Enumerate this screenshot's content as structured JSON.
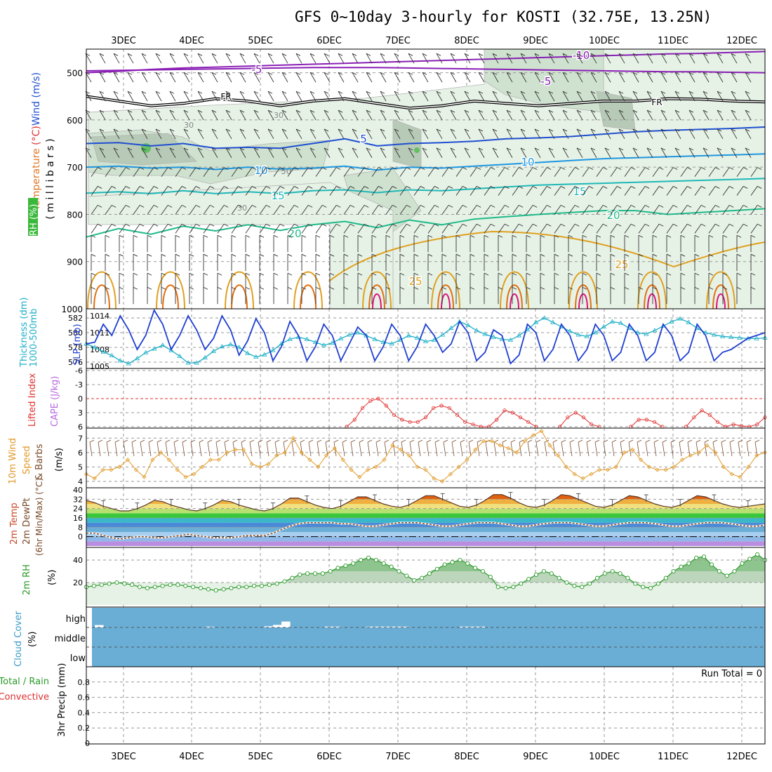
{
  "title": "GFS 0~10day 3-hourly for KOSTI (32.75E, 13.25N)",
  "x_axis": {
    "ticks": [
      "3DEC",
      "4DEC",
      "5DEC",
      "6DEC",
      "7DEC",
      "8DEC",
      "9DEC",
      "10DEC",
      "11DEC",
      "12DEC"
    ]
  },
  "colors": {
    "rh_light": "#e6f2e6",
    "rh_mid": "#cfe2cf",
    "rh_dark": "#b7c9b7",
    "temp_neg10": "#8a1fb5",
    "temp_neg5": "#8a1fb5",
    "freezing": "#000000",
    "temp_5": "#1f4fd1",
    "temp_10": "#1e96e0",
    "temp_15": "#1fb8b8",
    "temp_20": "#1fba8a",
    "temp_25": "#e0a020",
    "temp_30": "#e07010",
    "temp_35": "#e0107a",
    "slp": "#1f3fd1",
    "thickness": "#1fb0c8",
    "lifted_index": "#e03030",
    "wind": "#e09a2a",
    "cloud": "#6aaed6",
    "rh2m": "#2a9a2a"
  },
  "chart_data": [
    {
      "type": "heatmap",
      "panel": "vertical-profile",
      "ylabel_parts": [
        "RH (%)",
        "Temperature",
        "(°C)",
        "Wind",
        "(m/s)"
      ],
      "yaxis_title": "( m i l l i b a r s )",
      "y_ticks": [
        500,
        600,
        700,
        800,
        900,
        1000
      ],
      "ylim": [
        1000,
        450
      ],
      "temperature_contours": [
        {
          "label": "-10",
          "levels_mb": [
            500,
            497,
            493,
            490,
            488,
            486,
            484,
            482,
            480,
            478,
            476,
            474,
            472,
            470,
            468,
            466,
            464,
            462,
            460,
            459,
            457,
            455
          ]
        },
        {
          "label": "-5",
          "levels_mb": [
            496,
            495,
            494,
            493,
            492,
            491,
            490,
            489,
            489,
            489,
            490,
            491,
            492,
            493,
            494,
            495,
            496,
            497,
            498,
            498,
            499,
            500
          ]
        },
        {
          "label": "FR",
          "levels_mb": [
            550,
            560,
            570,
            565,
            555,
            560,
            570,
            560,
            555,
            565,
            575,
            570,
            560,
            565,
            570,
            565,
            560,
            560,
            555,
            556,
            560,
            562
          ]
        },
        {
          "label": "5",
          "levels_mb": [
            650,
            648,
            655,
            650,
            660,
            658,
            660,
            650,
            640,
            655,
            650,
            648,
            645,
            640,
            638,
            635,
            630,
            625,
            622,
            620,
            618,
            615
          ]
        },
        {
          "label": "10",
          "levels_mb": [
            700,
            698,
            702,
            700,
            705,
            700,
            704,
            702,
            698,
            706,
            700,
            702,
            698,
            694,
            690,
            686,
            682,
            680,
            678,
            676,
            674,
            672
          ]
        },
        {
          "label": "15",
          "levels_mb": [
            755,
            752,
            756,
            750,
            756,
            752,
            756,
            750,
            748,
            754,
            748,
            750,
            746,
            742,
            738,
            736,
            734,
            732,
            730,
            728,
            726,
            724
          ]
        },
        {
          "label": "20",
          "levels_mb": [
            848,
            830,
            842,
            825,
            835,
            822,
            834,
            822,
            815,
            828,
            812,
            822,
            810,
            805,
            800,
            796,
            792,
            792,
            800,
            796,
            792,
            788
          ]
        },
        {
          "label": "25",
          "levels_mb": [
            1000,
            960,
            1000,
            950,
            1000,
            940,
            1000,
            930,
            1000,
            900,
            1000,
            880,
            1000,
            870,
            1000,
            870,
            1000,
            880,
            1000,
            900,
            1000,
            880
          ]
        }
      ],
      "rh_contours": [
        "30",
        "50"
      ]
    },
    {
      "type": "line",
      "panel": "pressure-thickness",
      "ylabel_parts": [
        "1000-500mb",
        "Thickness (dm)",
        "SLP (mb)"
      ],
      "left_ticks": [
        "582",
        "580",
        "578",
        "576"
      ],
      "right_ticks": [
        "1014",
        "1011",
        "1008",
        "1005"
      ],
      "series": [
        {
          "name": "SLP (mb)",
          "values": [
            1009.0,
            1009.3,
            1012.5,
            1010.5,
            1014.0,
            1011.5,
            1008.0,
            1010.5,
            1015.0,
            1012.5,
            1008.0,
            1010.5,
            1014.0,
            1011.5,
            1008.0,
            1010.0,
            1014.0,
            1011.5,
            1007.0,
            1009.5,
            1013.5,
            1011.0,
            1006.0,
            1008.5,
            1013.0,
            1010.5,
            1006.0,
            1008.5,
            1012.5,
            1010.5,
            1006.0,
            1009.0,
            1012.0,
            1010.5,
            1006.0,
            1008.5,
            1012.5,
            1010.5,
            1006.0,
            1008.5,
            1012.5,
            1010.5,
            1007.5,
            1009.0,
            1013.0,
            1011.0,
            1006.0,
            1007.5,
            1011.5,
            1010.5,
            1005.5,
            1007.0,
            1012.5,
            1011.0,
            1006.0,
            1008.0,
            1012.5,
            1010.5,
            1006.0,
            1008.0,
            1012.5,
            1010.5,
            1006.0,
            1007.5,
            1012.5,
            1010.5,
            1006.0,
            1007.5,
            1012.5,
            1010.5,
            1006.0,
            1007.5,
            1012.5,
            1010.5,
            1006.0,
            1007.5,
            1008.0,
            1009.0,
            1010.0,
            1010.5,
            1011.0
          ]
        },
        {
          "name": "1000-500mb Thickness (dm)",
          "values": [
            578.5,
            578.0,
            577.4,
            576.9,
            576.2,
            575.8,
            576.5,
            577.3,
            577.8,
            578.3,
            577.6,
            576.8,
            575.9,
            575.9,
            576.6,
            577.5,
            578.1,
            578.4,
            578.0,
            577.2,
            576.7,
            577.0,
            577.6,
            578.5,
            579.1,
            579.4,
            579.1,
            578.7,
            578.3,
            578.6,
            579.2,
            579.7,
            580.0,
            579.6,
            579.1,
            578.7,
            578.5,
            579.0,
            579.6,
            579.3,
            578.8,
            579.0,
            579.7,
            580.6,
            581.5,
            581.0,
            580.3,
            579.8,
            579.4,
            579.1,
            579.0,
            579.6,
            580.4,
            581.4,
            582.0,
            581.4,
            580.8,
            580.2,
            579.7,
            579.5,
            580.0,
            580.8,
            581.5,
            581.3,
            580.6,
            580.0,
            579.8,
            580.3,
            580.9,
            581.5,
            581.9,
            581.4,
            580.6,
            580.0,
            579.7,
            579.5,
            579.4,
            579.3,
            579.2,
            579.2,
            579.3
          ]
        }
      ]
    },
    {
      "type": "line",
      "panel": "instability",
      "ylabel_parts": [
        "Lifted Index",
        "CAPE (J/kg)"
      ],
      "y_ticks": [
        "-6",
        "-3",
        "0",
        "3",
        "6"
      ],
      "ylim": [
        -6,
        6
      ],
      "series": [
        {
          "name": "Lifted Index",
          "values": [
            null,
            null,
            null,
            null,
            null,
            null,
            null,
            null,
            null,
            null,
            null,
            null,
            null,
            null,
            null,
            null,
            null,
            null,
            null,
            null,
            null,
            null,
            null,
            null,
            null,
            null,
            null,
            null,
            null,
            null,
            null,
            null,
            null,
            6.0,
            4.5,
            2.0,
            0.5,
            0.0,
            1.5,
            3.5,
            4.5,
            5.0,
            5.0,
            4.0,
            2.0,
            1.5,
            2.0,
            3.5,
            5.0,
            5.5,
            6.0,
            6.0,
            4.5,
            2.5,
            3.0,
            4.0,
            5.0,
            6.0,
            null,
            null,
            6.0,
            4.0,
            3.0,
            4.0,
            5.5,
            6.0,
            null,
            null,
            null,
            6.0,
            4.5,
            4.5,
            5.0,
            6.0,
            null,
            null,
            6.0,
            4.0,
            2.5,
            3.5,
            5.0,
            6.0,
            5.5,
            5.8,
            6.0,
            5.5,
            4.0
          ]
        }
      ]
    },
    {
      "type": "line",
      "panel": "surface-wind",
      "ylabel_parts": [
        "10m Wind",
        "Speed",
        "& Barbs",
        "(m/s)"
      ],
      "y_ticks": [
        "4",
        "5",
        "6",
        "7"
      ],
      "ylim": [
        3.7,
        7.6
      ],
      "series": [
        {
          "name": "10m Wind Speed",
          "values": [
            4.5,
            4.2,
            4.8,
            4.8,
            5.0,
            5.5,
            4.8,
            4.3,
            5.5,
            6.0,
            5.5,
            4.8,
            4.3,
            4.5,
            5.0,
            5.5,
            5.5,
            6.0,
            6.2,
            6.2,
            5.2,
            5.0,
            5.2,
            5.8,
            6.0,
            7.0,
            6.0,
            5.5,
            5.0,
            5.8,
            6.3,
            5.5,
            4.8,
            4.3,
            4.8,
            5.0,
            5.5,
            6.5,
            6.2,
            5.8,
            5.0,
            4.8,
            4.2,
            4.0,
            4.5,
            5.0,
            5.5,
            6.2,
            6.8,
            6.8,
            6.5,
            6.3,
            6.0,
            6.8,
            7.2,
            7.5,
            6.5,
            5.8,
            5.0,
            4.5,
            4.2,
            4.5,
            4.8,
            4.8,
            5.0,
            6.0,
            6.2,
            5.5,
            5.0,
            4.8,
            4.8,
            5.0,
            5.5,
            5.8,
            6.0,
            6.5,
            6.0,
            5.0,
            4.5,
            4.3,
            5.0,
            5.8,
            6.0
          ]
        }
      ]
    },
    {
      "type": "area",
      "panel": "temperature",
      "ylabel_parts": [
        "2m Temp",
        "2m DewPt",
        "(6hr Min/Max) (°C)"
      ],
      "y_ticks": [
        "0",
        "8",
        "16",
        "24",
        "32",
        "40"
      ],
      "ylim": [
        -8,
        40
      ],
      "series": [
        {
          "name": "2m Temp",
          "values": [
            31,
            29,
            26,
            24,
            22,
            22,
            24,
            27,
            31,
            30,
            27,
            25,
            23,
            22,
            24,
            27,
            31,
            30,
            27,
            25,
            23,
            22,
            24,
            28,
            33,
            33,
            30,
            27,
            25,
            24,
            26,
            30,
            34,
            34,
            31,
            28,
            26,
            25,
            27,
            31,
            35,
            35,
            32,
            29,
            26,
            25,
            27,
            31,
            36,
            36,
            33,
            29,
            26,
            25,
            27,
            31,
            36,
            35,
            32,
            29,
            26,
            25,
            27,
            31,
            35,
            34,
            31,
            28,
            26,
            25,
            27,
            31,
            35,
            34,
            31,
            28,
            26,
            25,
            26,
            27,
            28
          ]
        },
        {
          "name": "2m DewPt",
          "values": [
            3,
            3,
            1,
            -1,
            -2,
            -1,
            0,
            0,
            -1,
            -1,
            0,
            1,
            2,
            1,
            0,
            -1,
            -1,
            -1,
            0,
            1,
            1,
            1,
            3,
            6,
            9,
            11,
            12,
            12,
            12,
            12,
            11,
            11,
            10,
            9,
            9,
            10,
            11,
            12,
            12,
            12,
            11,
            10,
            9,
            9,
            10,
            11,
            12,
            12,
            12,
            11,
            10,
            9,
            9,
            10,
            11,
            12,
            12,
            12,
            11,
            10,
            9,
            9,
            10,
            11,
            12,
            12,
            12,
            11,
            10,
            9,
            9,
            10,
            11,
            12,
            12,
            12,
            11,
            10,
            9,
            9,
            10
          ]
        }
      ]
    },
    {
      "type": "area",
      "panel": "relative-humidity",
      "ylabel_parts": [
        "2m RH",
        "(%)"
      ],
      "y_ticks": [
        "20",
        "40"
      ],
      "ylim": [
        0,
        50
      ],
      "series": [
        {
          "name": "2m RH",
          "values": [
            16,
            17,
            18,
            19,
            20,
            19,
            18,
            16,
            15,
            16,
            17,
            18,
            18,
            17,
            16,
            15,
            14,
            13,
            14,
            15,
            16,
            16,
            17,
            17,
            18,
            19,
            21,
            24,
            27,
            28,
            28,
            28,
            30,
            33,
            35,
            37,
            40,
            42,
            40,
            37,
            34,
            30,
            26,
            22,
            24,
            28,
            32,
            36,
            38,
            40,
            37,
            33,
            30,
            25,
            16,
            15,
            16,
            19,
            23,
            27,
            30,
            28,
            24,
            20,
            17,
            16,
            19,
            24,
            28,
            30,
            28,
            24,
            19,
            16,
            15,
            19,
            24,
            30,
            34,
            37,
            42,
            43,
            36,
            30,
            26,
            30,
            37,
            41,
            45,
            40
          ]
        }
      ]
    },
    {
      "type": "bar",
      "panel": "cloud-cover",
      "ylabel_parts": [
        "Cloud Cover",
        "(%)"
      ],
      "y_ticks": [
        "high",
        "middle",
        "low"
      ],
      "series": [
        {
          "name": "high",
          "values": [
            100,
            88,
            100,
            100,
            100,
            100,
            100,
            100,
            100,
            100,
            100,
            100,
            100,
            100,
            96,
            100,
            100,
            100,
            100,
            100,
            100,
            94,
            87,
            70,
            100,
            100,
            100,
            100,
            96,
            96,
            100,
            100,
            100,
            96,
            96,
            96,
            96,
            96,
            100,
            100,
            100,
            100,
            100,
            100,
            96,
            96,
            96,
            100,
            100,
            100,
            100,
            100,
            100,
            100,
            100,
            100,
            100,
            100,
            100,
            100,
            100,
            100,
            100,
            100,
            100,
            100,
            100,
            100,
            100,
            100,
            100,
            100,
            100,
            100,
            100,
            100,
            100,
            100,
            100,
            100,
            100
          ]
        }
      ]
    },
    {
      "type": "bar",
      "panel": "precipitation",
      "ylabel_parts": [
        "Total / Rain",
        "Convective",
        "3hr Precip (mm)"
      ],
      "y_ticks": [
        "0",
        "0.2",
        "0.4",
        "0.6",
        "0.8"
      ],
      "ylim": [
        0,
        1
      ],
      "annotation": "Run Total = 0",
      "series": [
        {
          "name": "Total / Rain",
          "values": [
            0,
            0,
            0,
            0,
            0,
            0,
            0,
            0,
            0,
            0
          ]
        }
      ]
    }
  ]
}
